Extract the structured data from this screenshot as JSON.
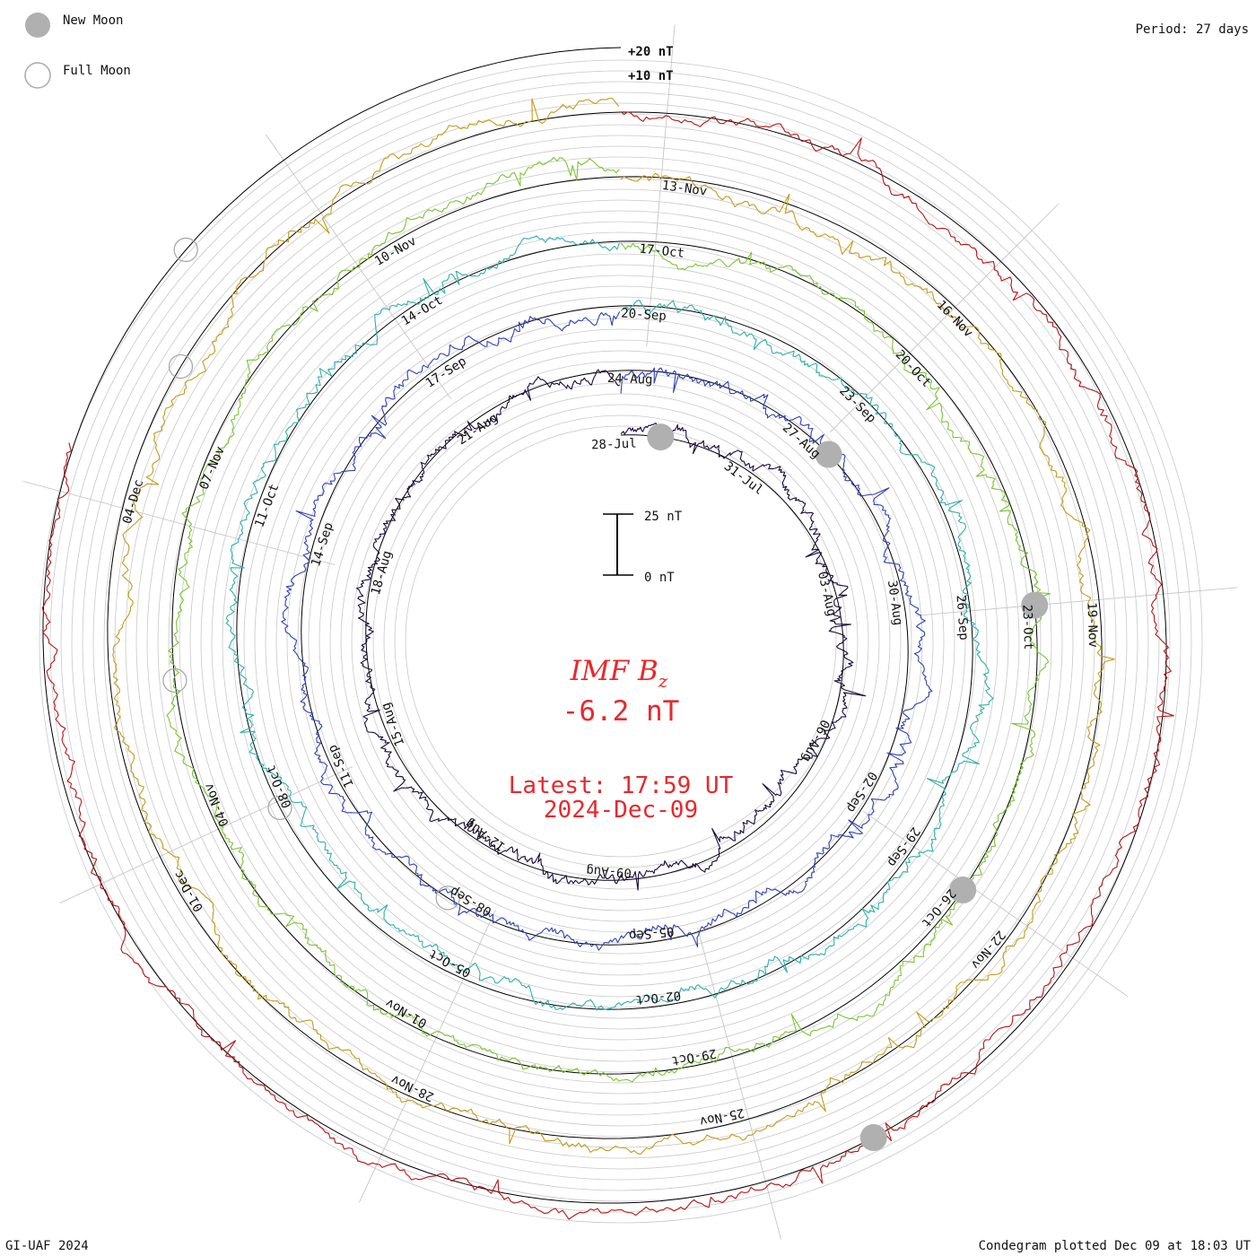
{
  "legend": {
    "new_moon": "New Moon",
    "full_moon": "Full Moon",
    "new_moon_color": "#b0b0b0",
    "full_moon_color": "#a9a9a9"
  },
  "period": "Period: 27 days",
  "scale": {
    "plus20": "+20 nT",
    "plus10": "+10 nT",
    "bar_top": "25 nT",
    "bar_bottom": "0 nT"
  },
  "center": {
    "quantity": "IMF B",
    "subscript": "z",
    "value": "-6.2 nT",
    "latest": "Latest: 17:59 UT",
    "date": "2024-Dec-09"
  },
  "footer": {
    "left": "GI-UAF 2024",
    "right": "Condegram plotted Dec 09 at 18:03 UT"
  },
  "chart_data": {
    "type": "line",
    "title": "IMF Bz condegram",
    "period_days": 27,
    "units": "nT",
    "current_value": -6.2,
    "scale_nT": [
      0,
      25
    ],
    "series": [
      {
        "name": "28-Jul to 24-Aug",
        "color": "#1a0a3c",
        "start_angle_deg": -90,
        "end_angle_deg": -90
      },
      {
        "name": "24-Aug to 20-Sep",
        "color": "#3040b8",
        "start_angle_deg": -90,
        "end_angle_deg": -90
      },
      {
        "name": "20-Sep to 17-Oct",
        "color": "#2fb0a8",
        "start_angle_deg": -90,
        "end_angle_deg": -90
      },
      {
        "name": "17-Oct to 13-Nov",
        "color": "#7cc432",
        "start_angle_deg": -90,
        "end_angle_deg": -90
      },
      {
        "name": "13-Nov to 09-Dec",
        "color": "#c49a1a",
        "start_angle_deg": -90,
        "end_angle_deg": -90
      },
      {
        "name": "Nov to 09-Dec",
        "color": "#b81414",
        "start_angle_deg": -90,
        "end_angle_deg": -90
      }
    ],
    "day_labels": [
      {
        "text": "28-Jul",
        "ring": 0,
        "angle_deg": -92
      },
      {
        "text": "31-Jul",
        "ring": 0,
        "angle_deg": -53
      },
      {
        "text": "03-Aug",
        "ring": 0,
        "angle_deg": -13
      },
      {
        "text": "06-Aug",
        "ring": 0,
        "angle_deg": 27
      },
      {
        "text": "09-Aug",
        "ring": 0,
        "angle_deg": 93
      },
      {
        "text": "12-Aug",
        "ring": 0,
        "angle_deg": 125
      },
      {
        "text": "15-Aug",
        "ring": 0,
        "angle_deg": 160
      },
      {
        "text": "18-Aug",
        "ring": 0,
        "angle_deg": 196
      },
      {
        "text": "21-Aug",
        "ring": 0,
        "angle_deg": 236
      },
      {
        "text": "24-Aug",
        "ring": 1,
        "angle_deg": -88
      },
      {
        "text": "27-Aug",
        "ring": 1,
        "angle_deg": -48
      },
      {
        "text": "30-Aug",
        "ring": 1,
        "angle_deg": -8
      },
      {
        "text": "02-Sep",
        "ring": 1,
        "angle_deg": 32
      },
      {
        "text": "05-Sep",
        "ring": 1,
        "angle_deg": 84
      },
      {
        "text": "08-Sep",
        "ring": 1,
        "angle_deg": 120
      },
      {
        "text": "11-Sep",
        "ring": 1,
        "angle_deg": 156
      },
      {
        "text": "14-Sep",
        "ring": 1,
        "angle_deg": 198
      },
      {
        "text": "17-Sep",
        "ring": 1,
        "angle_deg": 237
      },
      {
        "text": "20-Sep",
        "ring": 2,
        "angle_deg": -86
      },
      {
        "text": "23-Sep",
        "ring": 2,
        "angle_deg": -45
      },
      {
        "text": "26-Sep",
        "ring": 2,
        "angle_deg": -4
      },
      {
        "text": "29-Sep",
        "ring": 2,
        "angle_deg": 36
      },
      {
        "text": "02-Oct",
        "ring": 2,
        "angle_deg": 84
      },
      {
        "text": "05-Oct",
        "ring": 2,
        "angle_deg": 118
      },
      {
        "text": "08-Oct",
        "ring": 2,
        "angle_deg": 157
      },
      {
        "text": "11-Oct",
        "ring": 2,
        "angle_deg": 201
      },
      {
        "text": "14-Oct",
        "ring": 2,
        "angle_deg": 239
      },
      {
        "text": "17-Oct",
        "ring": 3,
        "angle_deg": -84
      },
      {
        "text": "20-Oct",
        "ring": 3,
        "angle_deg": -43
      },
      {
        "text": "23-Oct",
        "ring": 3,
        "angle_deg": -2
      },
      {
        "text": "26-Oct",
        "ring": 3,
        "angle_deg": 40
      },
      {
        "text": "29-Oct",
        "ring": 3,
        "angle_deg": 80
      },
      {
        "text": "01-Nov",
        "ring": 3,
        "angle_deg": 120
      },
      {
        "text": "04-Nov",
        "ring": 3,
        "angle_deg": 158
      },
      {
        "text": "07-Nov",
        "ring": 3,
        "angle_deg": 203
      },
      {
        "text": "10-Nov",
        "ring": 3,
        "angle_deg": 240
      },
      {
        "text": "13-Nov",
        "ring": 4,
        "angle_deg": -82
      },
      {
        "text": "16-Nov",
        "ring": 4,
        "angle_deg": -44
      },
      {
        "text": "19-Nov",
        "ring": 4,
        "angle_deg": -2
      },
      {
        "text": "22-Nov",
        "ring": 4,
        "angle_deg": 40
      },
      {
        "text": "25-Nov",
        "ring": 4,
        "angle_deg": 78
      },
      {
        "text": "28-Nov",
        "ring": 4,
        "angle_deg": 115
      },
      {
        "text": "01-Dec",
        "ring": 4,
        "angle_deg": 150
      },
      {
        "text": "04-Dec",
        "ring": 4,
        "angle_deg": 196
      }
    ],
    "new_moons": [
      {
        "ring": 0,
        "angle_deg": 11
      },
      {
        "ring": 1,
        "angle_deg": 48
      },
      {
        "ring": 3,
        "angle_deg": 85
      },
      {
        "ring": 3,
        "angle_deg": 126
      },
      {
        "ring": 5,
        "angle_deg": 153
      }
    ],
    "full_moons": [
      {
        "ring": 1,
        "angle_deg": 214
      },
      {
        "ring": 2,
        "angle_deg": 244
      },
      {
        "ring": 3,
        "angle_deg": 265
      },
      {
        "ring": 4,
        "angle_deg": 302
      },
      {
        "ring": 5,
        "angle_deg": 312
      }
    ]
  }
}
